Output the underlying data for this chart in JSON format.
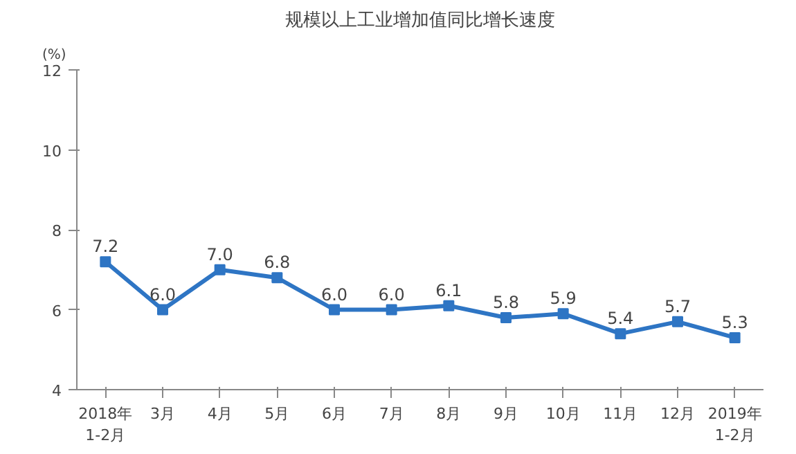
{
  "chart_data": {
    "type": "line",
    "title": "规模以上工业增加值同比增长速度",
    "ylabel": "(%)",
    "categories": [
      "2018年\n1-2月",
      "3月",
      "4月",
      "5月",
      "6月",
      "7月",
      "8月",
      "9月",
      "10月",
      "11月",
      "12月",
      "2019年\n1-2月"
    ],
    "series": [
      {
        "color": "#2e75c4",
        "values": [
          7.2,
          6.0,
          7.0,
          6.8,
          6.0,
          6.0,
          6.1,
          5.8,
          5.9,
          5.4,
          5.7,
          5.3
        ],
        "value_labels": [
          "7.2",
          "6.0",
          "7.0",
          "6.8",
          "6.0",
          "6.0",
          "6.1",
          "5.8",
          "5.9",
          "5.4",
          "5.7",
          "5.3"
        ]
      }
    ],
    "ylim": [
      4,
      12
    ],
    "yticks": [
      4,
      6,
      8,
      10,
      12
    ],
    "grid": false,
    "marker": "square",
    "line_style": "solid"
  }
}
